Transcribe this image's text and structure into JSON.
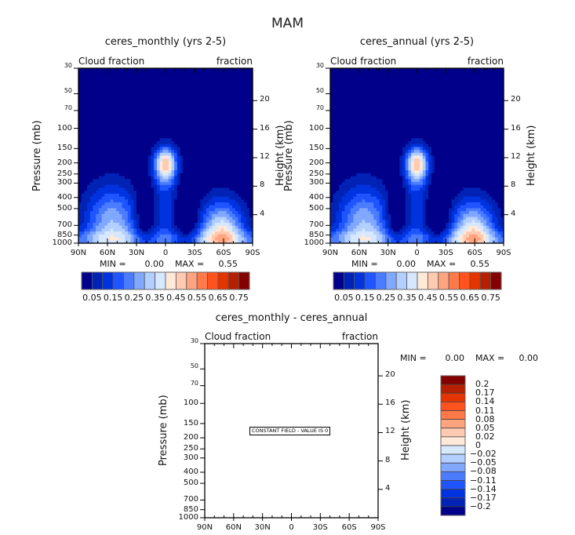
{
  "figure_title": "MAM",
  "chart_data": [
    {
      "type": "heatmap",
      "id": "monthly",
      "title": "ceres_monthly (yrs 2-5)",
      "left_subtitle": "Cloud fraction",
      "right_subtitle": "fraction",
      "xlabel": "",
      "ylabel": "Pressure (mb)",
      "ylabel_right": "Height (km)",
      "x_ticks": [
        "90N",
        "60N",
        "30N",
        "0",
        "30S",
        "60S",
        "90S"
      ],
      "x_range": [
        90,
        -90
      ],
      "y_ticks": [
        "30",
        "50",
        "70",
        "100",
        "150",
        "200",
        "250",
        "300",
        "400",
        "500",
        "700",
        "850",
        "1000"
      ],
      "y_tick_values": [
        30,
        50,
        70,
        100,
        150,
        200,
        250,
        300,
        400,
        500,
        700,
        850,
        1000
      ],
      "y_range": [
        30,
        1000
      ],
      "y_right_ticks": [
        "20",
        "16",
        "12",
        "8",
        "4"
      ],
      "y_right_values": [
        20,
        16,
        12,
        8,
        4
      ],
      "min_label": "MIN =",
      "min_value": "0.00",
      "max_label": "MAX =",
      "max_value": "0.55",
      "colorbar_labels": [
        "0.05",
        "0.15",
        "0.25",
        "0.35",
        "0.45",
        "0.55",
        "0.65",
        "0.75"
      ],
      "colorbar_levels": [
        0,
        0.05,
        0.1,
        0.15,
        0.2,
        0.25,
        0.3,
        0.35,
        0.4,
        0.45,
        0.5,
        0.55,
        0.6,
        0.65,
        0.7,
        0.75
      ],
      "colorbar_colors": [
        "#00008a",
        "#0023b5",
        "#0033e0",
        "#1f55ff",
        "#4b7cff",
        "#80a8ff",
        "#b3cfff",
        "#d6e8ff",
        "#ffe9d8",
        "#ffcab0",
        "#ffa47f",
        "#ff7a48",
        "#ff531f",
        "#e43500",
        "#b62000",
        "#850000"
      ]
    },
    {
      "type": "heatmap",
      "id": "annual",
      "title": "ceres_annual (yrs 2-5)",
      "left_subtitle": "Cloud fraction",
      "right_subtitle": "fraction",
      "xlabel": "",
      "ylabel": "Pressure (mb)",
      "ylabel_right": "Height (km)",
      "x_ticks": [
        "90N",
        "60N",
        "30N",
        "0",
        "30S",
        "60S",
        "90S"
      ],
      "x_range": [
        90,
        -90
      ],
      "y_ticks": [
        "30",
        "50",
        "70",
        "100",
        "150",
        "200",
        "250",
        "300",
        "400",
        "500",
        "700",
        "850",
        "1000"
      ],
      "y_tick_values": [
        30,
        50,
        70,
        100,
        150,
        200,
        250,
        300,
        400,
        500,
        700,
        850,
        1000
      ],
      "y_range": [
        30,
        1000
      ],
      "y_right_ticks": [
        "20",
        "16",
        "12",
        "8",
        "4"
      ],
      "y_right_values": [
        20,
        16,
        12,
        8,
        4
      ],
      "min_label": "MIN =",
      "min_value": "0.00",
      "max_label": "MAX =",
      "max_value": "0.55",
      "colorbar_labels": [
        "0.05",
        "0.15",
        "0.25",
        "0.35",
        "0.45",
        "0.55",
        "0.65",
        "0.75"
      ],
      "colorbar_levels": [
        0,
        0.05,
        0.1,
        0.15,
        0.2,
        0.25,
        0.3,
        0.35,
        0.4,
        0.45,
        0.5,
        0.55,
        0.6,
        0.65,
        0.7,
        0.75
      ],
      "colorbar_colors": [
        "#00008a",
        "#0023b5",
        "#0033e0",
        "#1f55ff",
        "#4b7cff",
        "#80a8ff",
        "#b3cfff",
        "#d6e8ff",
        "#ffe9d8",
        "#ffcab0",
        "#ffa47f",
        "#ff7a48",
        "#ff531f",
        "#e43500",
        "#b62000",
        "#850000"
      ]
    },
    {
      "type": "heatmap",
      "id": "difference",
      "title": "ceres_monthly - ceres_annual",
      "left_subtitle": "Cloud fraction",
      "right_subtitle": "fraction",
      "xlabel": "",
      "ylabel": "Pressure (mb)",
      "ylabel_right": "Height (km)",
      "x_ticks": [
        "90N",
        "60N",
        "30N",
        "0",
        "30S",
        "60S",
        "90S"
      ],
      "x_range": [
        90,
        -90
      ],
      "y_ticks": [
        "30",
        "50",
        "70",
        "100",
        "150",
        "200",
        "250",
        "300",
        "400",
        "500",
        "700",
        "850",
        "1000"
      ],
      "y_tick_values": [
        30,
        50,
        70,
        100,
        150,
        200,
        250,
        300,
        400,
        500,
        700,
        850,
        1000
      ],
      "y_range": [
        30,
        1000
      ],
      "y_right_ticks": [
        "20",
        "16",
        "12",
        "8",
        "4"
      ],
      "y_right_values": [
        20,
        16,
        12,
        8,
        4
      ],
      "min_label": "MIN =",
      "min_value": "0.00",
      "max_label": "MAX =",
      "max_value": "0.00",
      "annotation": "CONSTANT FIELD - VALUE IS 0",
      "colorbar_labels": [
        "0.2",
        "0.17",
        "0.14",
        "0.11",
        "0.08",
        "0.05",
        "0.02",
        "0",
        "-0.02",
        "-0.05",
        "-0.08",
        "-0.11",
        "-0.14",
        "-0.17",
        "-0.2"
      ],
      "colorbar_colors": [
        "#850000",
        "#b62000",
        "#e43500",
        "#ff531f",
        "#ff7a48",
        "#ffa47f",
        "#ffcab0",
        "#ffe9d8",
        "#d6e8ff",
        "#b3cfff",
        "#80a8ff",
        "#4b7cff",
        "#1f55ff",
        "#0033e0",
        "#0023b5",
        "#00008a"
      ]
    }
  ]
}
